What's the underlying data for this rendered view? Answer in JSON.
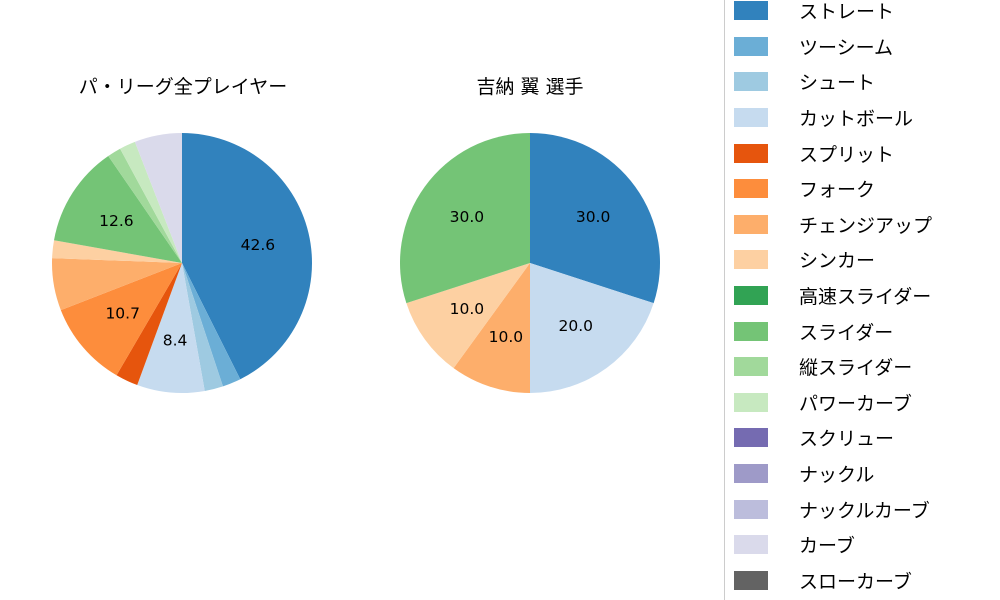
{
  "page": {
    "background": "#ffffff"
  },
  "chart_data": [
    {
      "type": "pie",
      "title": "パ・リーグ全プレイヤー",
      "start_angle": "top",
      "direction": "clockwise",
      "label_note": "percent labels shown only for larger slices",
      "slices": [
        {
          "name": "ストレート",
          "value": 42.6,
          "label": "42.6",
          "color": "#3182bd"
        },
        {
          "name": "ツーシーム",
          "value": 2.3,
          "label": null,
          "color": "#6baed6"
        },
        {
          "name": "シュート",
          "value": 2.3,
          "label": null,
          "color": "#9ecae1"
        },
        {
          "name": "カットボール",
          "value": 8.4,
          "label": "8.4",
          "color": "#c6dbef"
        },
        {
          "name": "スプリット",
          "value": 2.8,
          "label": null,
          "color": "#e6550d"
        },
        {
          "name": "フォーク",
          "value": 10.7,
          "label": "10.7",
          "color": "#fd8d3c"
        },
        {
          "name": "チェンジアップ",
          "value": 6.5,
          "label": null,
          "color": "#fdae6b"
        },
        {
          "name": "シンカー",
          "value": 2.2,
          "label": null,
          "color": "#fdd0a2"
        },
        {
          "name": "スライダー",
          "value": 12.6,
          "label": "12.6",
          "color": "#74c476"
        },
        {
          "name": "縦スライダー",
          "value": 1.7,
          "label": null,
          "color": "#a1d99b"
        },
        {
          "name": "パワーカーブ",
          "value": 2.0,
          "label": null,
          "color": "#c7e9c0"
        },
        {
          "name": "カーブ",
          "value": 5.9,
          "label": null,
          "color": "#dadaeb"
        }
      ]
    },
    {
      "type": "pie",
      "title": "吉納 翼 選手",
      "start_angle": "top",
      "direction": "clockwise",
      "slices": [
        {
          "name": "ストレート",
          "value": 30.0,
          "label": "30.0",
          "color": "#3182bd"
        },
        {
          "name": "カットボール",
          "value": 20.0,
          "label": "20.0",
          "color": "#c6dbef"
        },
        {
          "name": "チェンジアップ",
          "value": 10.0,
          "label": "10.0",
          "color": "#fdae6b"
        },
        {
          "name": "シンカー",
          "value": 10.0,
          "label": "10.0",
          "color": "#fdd0a2"
        },
        {
          "name": "スライダー",
          "value": 30.0,
          "label": "30.0",
          "color": "#74c476"
        }
      ]
    }
  ],
  "legend": {
    "items": [
      {
        "label": "ストレート",
        "color": "#3182bd"
      },
      {
        "label": "ツーシーム",
        "color": "#6baed6"
      },
      {
        "label": "シュート",
        "color": "#9ecae1"
      },
      {
        "label": "カットボール",
        "color": "#c6dbef"
      },
      {
        "label": "スプリット",
        "color": "#e6550d"
      },
      {
        "label": "フォーク",
        "color": "#fd8d3c"
      },
      {
        "label": "チェンジアップ",
        "color": "#fdae6b"
      },
      {
        "label": "シンカー",
        "color": "#fdd0a2"
      },
      {
        "label": "高速スライダー",
        "color": "#31a354"
      },
      {
        "label": "スライダー",
        "color": "#74c476"
      },
      {
        "label": "縦スライダー",
        "color": "#a1d99b"
      },
      {
        "label": "パワーカーブ",
        "color": "#c7e9c0"
      },
      {
        "label": "スクリュー",
        "color": "#756bb1"
      },
      {
        "label": "ナックル",
        "color": "#9e9ac8"
      },
      {
        "label": "ナックルカーブ",
        "color": "#bcbddc"
      },
      {
        "label": "カーブ",
        "color": "#dadaeb"
      },
      {
        "label": "スローカーブ",
        "color": "#636363"
      }
    ]
  }
}
